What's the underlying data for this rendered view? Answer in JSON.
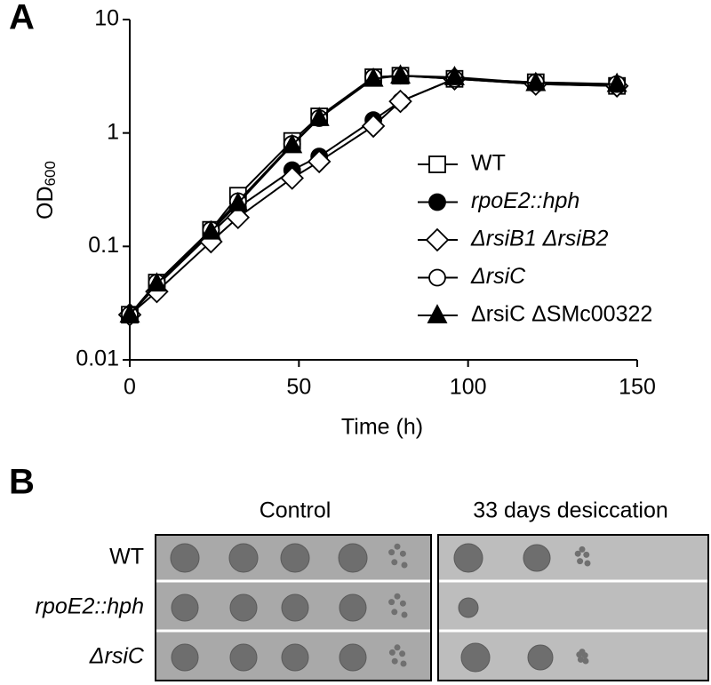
{
  "chart_data": {
    "type": "line",
    "panel": "A",
    "xlabel": "Time (h)",
    "ylabel": "OD",
    "ylabel_subscript": "600",
    "x": [
      0,
      8,
      24,
      32,
      48,
      56,
      72,
      80,
      96,
      120,
      144
    ],
    "xlim": [
      0,
      150
    ],
    "xticks": [
      0,
      50,
      100,
      150
    ],
    "yscale": "log",
    "ylim": [
      0.01,
      10
    ],
    "yticks": [
      0.01,
      0.1,
      1,
      10
    ],
    "legend": "right",
    "series": [
      {
        "name": "WT",
        "color": "#000000",
        "marker": "square",
        "filled": false,
        "values": [
          0.025,
          0.048,
          0.14,
          0.28,
          0.85,
          1.4,
          3.1,
          3.2,
          3.0,
          2.8,
          2.6
        ]
      },
      {
        "name": "rpoE2::hph",
        "color": "#000000",
        "marker": "circle",
        "filled": true,
        "italic": true,
        "values": [
          0.025,
          0.045,
          0.13,
          0.22,
          0.47,
          0.62,
          1.3,
          1.9,
          3.0,
          2.7,
          2.6
        ]
      },
      {
        "name": "ΔrsiB1 ΔrsiB2",
        "color": "#000000",
        "marker": "diamond",
        "filled": false,
        "italic": true,
        "values": [
          0.025,
          0.04,
          0.11,
          0.18,
          0.4,
          0.56,
          1.15,
          1.9,
          3.0,
          2.7,
          2.6
        ]
      },
      {
        "name": "ΔrsiC",
        "color": "#000000",
        "marker": "circle",
        "filled": false,
        "italic": true,
        "values": [
          0.025,
          0.048,
          0.14,
          0.25,
          0.8,
          1.35,
          3.1,
          3.2,
          3.0,
          2.8,
          2.7
        ]
      },
      {
        "name": "ΔrsiC ΔSMc00322",
        "color": "#000000",
        "marker": "triangle",
        "filled": true,
        "values": [
          0.025,
          0.047,
          0.135,
          0.24,
          0.78,
          1.35,
          3.0,
          3.2,
          3.1,
          2.75,
          2.7
        ]
      }
    ]
  },
  "panel_b": {
    "label": "B",
    "columns": [
      "Control",
      "33 days desiccation"
    ],
    "rows": [
      "WT",
      "rpoE2::hph",
      "ΔrsiC"
    ]
  }
}
